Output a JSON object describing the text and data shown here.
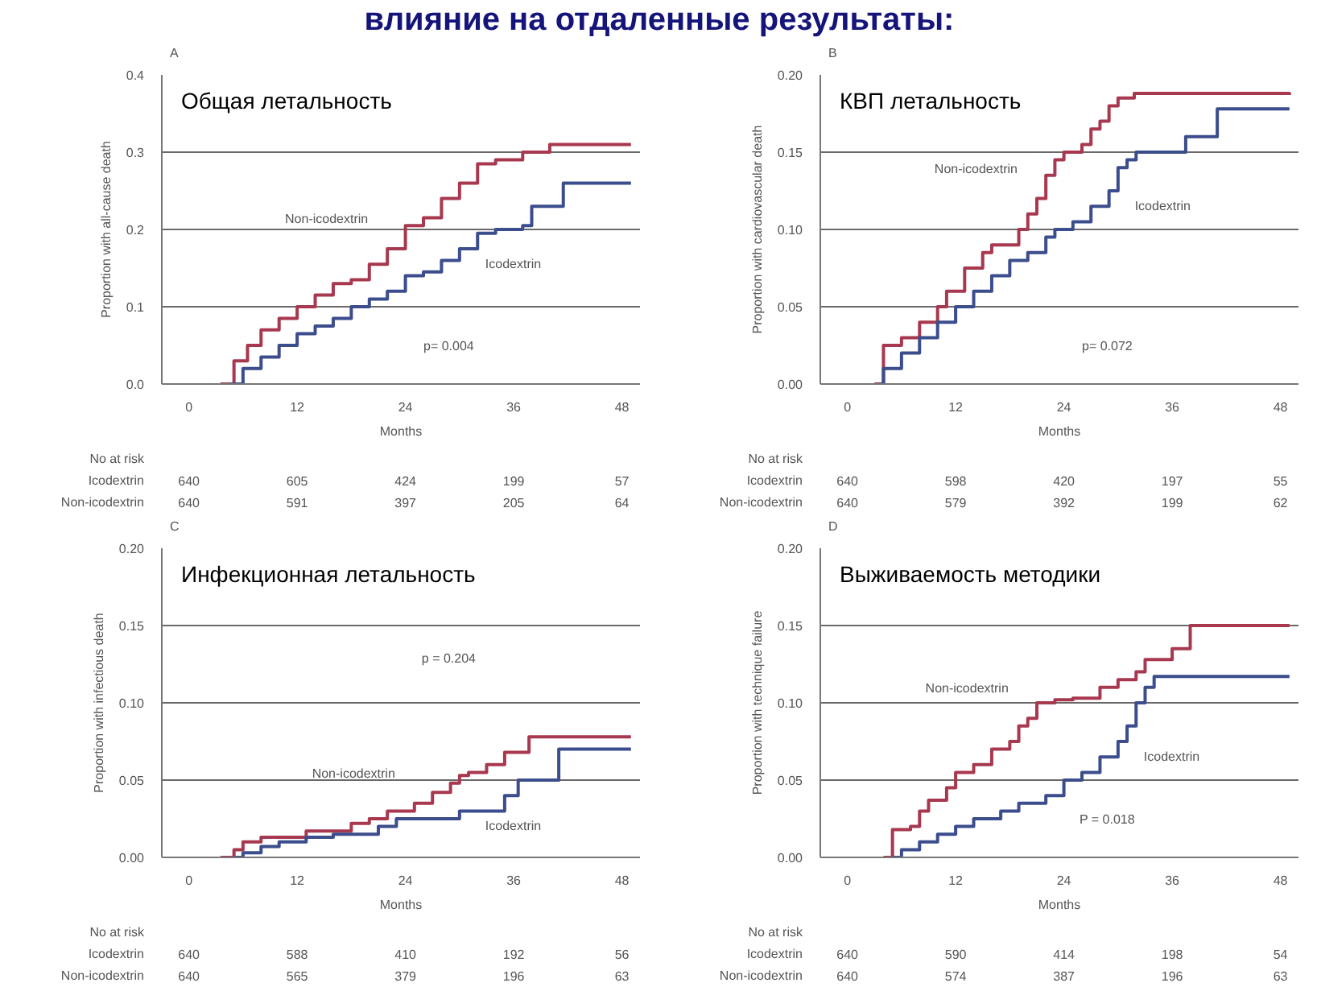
{
  "chart_data": [
    {
      "type": "other",
      "title": "влияние на отдаленные результаты:"
    },
    {
      "type": "step",
      "title": "Общая летальность",
      "xlabel": "Months",
      "ylabel": "Proportion with all-cause death",
      "xlim": [
        -3,
        50
      ],
      "ylim": [
        0,
        0.4
      ],
      "xticks": [
        0,
        12,
        24,
        36,
        48
      ],
      "yticks": [
        {
          "value": 0,
          "label": "0.0"
        },
        0.1,
        0.2,
        0.3,
        0.4
      ],
      "grid": "y",
      "annotations": [
        "A",
        "p= 0.004",
        "No at risk",
        "Icodextrin",
        "640",
        "605",
        "424",
        "199",
        "57",
        "Non-icodextrin",
        "640",
        "591",
        "397",
        "205",
        "64"
      ],
      "series": [
        {
          "name": "Non-icodextrin",
          "color": "#a8384f",
          "x": [
            3.5,
            5,
            6.5,
            8,
            10,
            12,
            14,
            16,
            18,
            20,
            22,
            24,
            26,
            28,
            30,
            32,
            34,
            37,
            40,
            49
          ],
          "values": [
            0,
            0.03,
            0.05,
            0.07,
            0.085,
            0.1,
            0.115,
            0.13,
            0.135,
            0.155,
            0.175,
            0.205,
            0.215,
            0.24,
            0.26,
            0.285,
            0.29,
            0.3,
            0.31,
            0.31
          ]
        },
        {
          "name": "Icodextrin",
          "color": "#3b4d8c",
          "x": [
            4.5,
            6,
            8,
            10,
            12,
            14,
            16,
            18,
            20,
            22,
            24,
            26,
            28,
            30,
            32,
            34,
            37,
            38,
            41.5,
            49
          ],
          "values": [
            0,
            0.02,
            0.035,
            0.05,
            0.065,
            0.075,
            0.085,
            0.1,
            0.11,
            0.12,
            0.14,
            0.145,
            0.16,
            0.175,
            0.195,
            0.2,
            0.205,
            0.23,
            0.26,
            0.26
          ]
        }
      ]
    },
    {
      "type": "step",
      "title": "КВП летальность",
      "xlabel": "Months",
      "ylabel": "Proportion with cardiovascular death",
      "xlim": [
        -3,
        50
      ],
      "ylim": [
        0,
        0.2
      ],
      "xticks": [
        0,
        12,
        24,
        36,
        48
      ],
      "yticks": [
        {
          "value": 0,
          "label": "0.00"
        },
        0.05,
        {
          "value": 0.1,
          "label": "0.10"
        },
        0.15,
        {
          "value": 0.2,
          "label": "0.20"
        }
      ],
      "grid": "y",
      "annotations": [
        "B",
        "p= 0.072",
        "No at risk",
        "Icodextrin",
        "640",
        "598",
        "420",
        "197",
        "55",
        "Non-icodextrin",
        "640",
        "579",
        "392",
        "199",
        "62"
      ],
      "series": [
        {
          "name": "Non-icodextrin",
          "color": "#a8384f",
          "x": [
            3,
            4,
            6,
            8,
            10,
            11,
            13,
            15,
            16,
            19,
            20,
            21,
            22,
            23,
            24,
            26,
            27,
            28,
            29,
            30,
            31.8,
            49
          ],
          "values": [
            0,
            0.025,
            0.03,
            0.04,
            0.05,
            0.06,
            0.075,
            0.085,
            0.09,
            0.1,
            0.11,
            0.12,
            0.135,
            0.145,
            0.15,
            0.155,
            0.165,
            0.17,
            0.18,
            0.185,
            0.188,
            0.187
          ]
        },
        {
          "name": "Icodextrin",
          "color": "#3b4d8c",
          "x": [
            3.5,
            4,
            6,
            8,
            10,
            12,
            14,
            16,
            18,
            20,
            22,
            23,
            25,
            27,
            29,
            30,
            31,
            32,
            37.5,
            41,
            49
          ],
          "values": [
            0,
            0.01,
            0.02,
            0.03,
            0.04,
            0.05,
            0.06,
            0.07,
            0.08,
            0.085,
            0.095,
            0.1,
            0.105,
            0.115,
            0.125,
            0.14,
            0.145,
            0.15,
            0.16,
            0.178,
            0.178
          ]
        }
      ]
    },
    {
      "type": "step",
      "title": "Инфекционная  летальность",
      "xlabel": "Months",
      "ylabel": "Proportion with infectious death",
      "xlim": [
        -3,
        50
      ],
      "ylim": [
        0,
        0.2
      ],
      "xticks": [
        0,
        12,
        24,
        36,
        48
      ],
      "yticks": [
        {
          "value": 0,
          "label": "0.00"
        },
        0.05,
        {
          "value": 0.1,
          "label": "0.10"
        },
        0.15,
        {
          "value": 0.2,
          "label": "0.20"
        }
      ],
      "grid": "y",
      "annotations": [
        "C",
        "p = 0.204",
        "No at risk",
        "Icodextrin",
        "640",
        "588",
        "410",
        "192",
        "56",
        "Non-icodextrin",
        "640",
        "565",
        "379",
        "196",
        "63"
      ],
      "series": [
        {
          "name": "Non-icodextrin",
          "color": "#a8384f",
          "x": [
            3.5,
            5,
            6,
            8,
            13,
            18,
            20,
            22,
            25,
            27,
            29,
            30,
            31,
            33,
            35,
            37.7,
            49
          ],
          "values": [
            0,
            0.005,
            0.01,
            0.013,
            0.017,
            0.022,
            0.025,
            0.03,
            0.035,
            0.042,
            0.048,
            0.053,
            0.055,
            0.06,
            0.068,
            0.078,
            0.078
          ]
        },
        {
          "name": "Icodextrin",
          "color": "#3b4d8c",
          "x": [
            5,
            6,
            8,
            10,
            13,
            16,
            21,
            23,
            30,
            35,
            36.5,
            41,
            49
          ],
          "values": [
            0,
            0.003,
            0.007,
            0.01,
            0.013,
            0.015,
            0.02,
            0.025,
            0.03,
            0.04,
            0.05,
            0.07,
            0.07
          ]
        }
      ]
    },
    {
      "type": "step",
      "title": "Выживаемость методики",
      "xlabel": "Months",
      "ylabel": "Proportion with technique failure",
      "xlim": [
        -3,
        50
      ],
      "ylim": [
        0,
        0.2
      ],
      "xticks": [
        0,
        12,
        24,
        36,
        48
      ],
      "yticks": [
        {
          "value": 0,
          "label": "0.00"
        },
        0.05,
        {
          "value": 0.1,
          "label": "0.10"
        },
        0.15,
        {
          "value": 0.2,
          "label": "0.20"
        }
      ],
      "grid": "y",
      "annotations": [
        "D",
        "P = 0.018",
        "No at risk",
        "Icodextrin",
        "640",
        "590",
        "414",
        "198",
        "54",
        "Non-icodextrin",
        "640",
        "574",
        "387",
        "196",
        "63"
      ],
      "series": [
        {
          "name": "Non-icodextrin",
          "color": "#a8384f",
          "x": [
            4,
            5,
            7,
            8,
            9,
            11,
            12,
            14,
            16,
            18,
            19,
            20,
            21,
            23,
            25,
            28,
            30,
            32,
            33,
            36,
            38,
            49
          ],
          "values": [
            0,
            0.018,
            0.02,
            0.03,
            0.037,
            0.045,
            0.055,
            0.06,
            0.07,
            0.075,
            0.085,
            0.09,
            0.1,
            0.102,
            0.103,
            0.11,
            0.115,
            0.12,
            0.128,
            0.135,
            0.15,
            0.15
          ]
        },
        {
          "name": "Icodextrin",
          "color": "#3b4d8c",
          "x": [
            5,
            6,
            8,
            10,
            12,
            14,
            17,
            19,
            22,
            24,
            26,
            28,
            30,
            31,
            32,
            33,
            34,
            49
          ],
          "values": [
            0,
            0.005,
            0.01,
            0.015,
            0.02,
            0.025,
            0.03,
            0.035,
            0.04,
            0.05,
            0.055,
            0.065,
            0.075,
            0.085,
            0.1,
            0.11,
            0.117,
            0.117
          ]
        }
      ]
    }
  ]
}
